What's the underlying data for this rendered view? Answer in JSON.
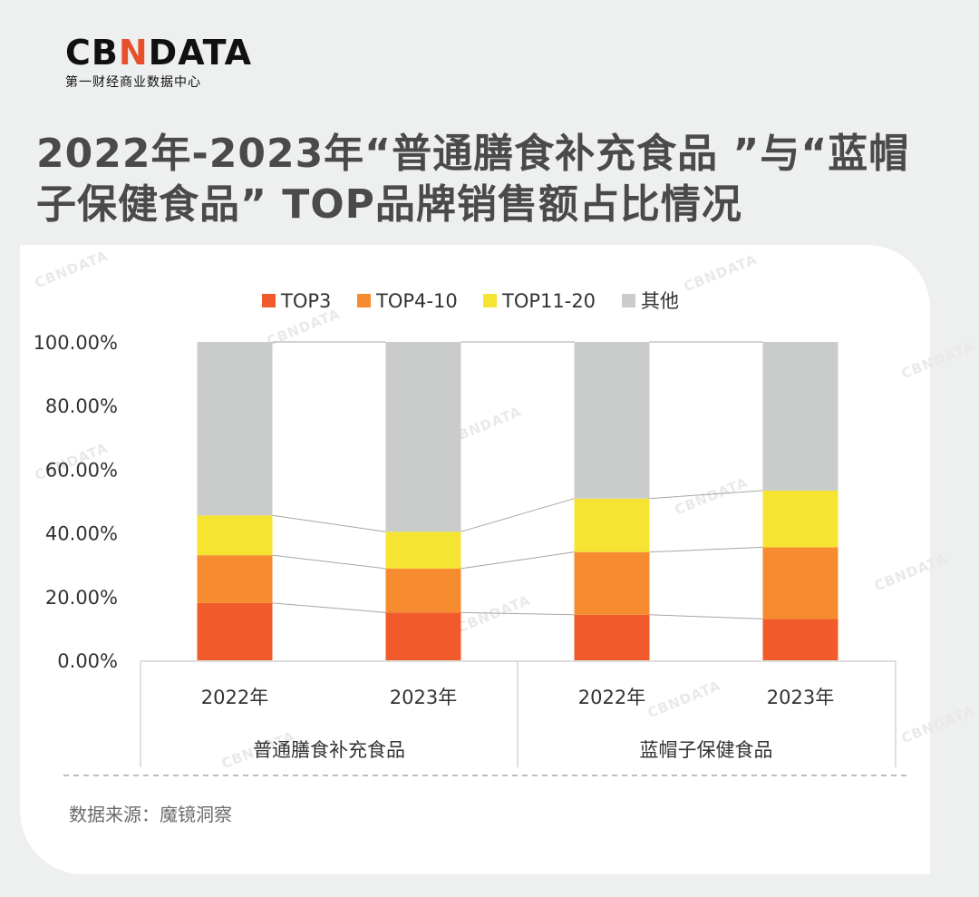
{
  "logo": {
    "text_left": "CB",
    "text_accent": "N",
    "text_right": "DATA",
    "subtitle": "第一财经商业数据中心"
  },
  "title": "2022年-2023年“普通膳食补充食品 ”与“蓝帽子保健食品” TOP品牌销售额占比情况",
  "source": "数据来源：魔镜洞察",
  "watermark": "CBNDATA",
  "colors": {
    "TOP3": "#f15a2b",
    "TOP4-10": "#f68b30",
    "TOP11-20": "#f6e432",
    "其他": "#cacbcb"
  },
  "chart_data": {
    "type": "bar",
    "stacked": true,
    "ylim": [
      0,
      100
    ],
    "yticks": [
      "0.00%",
      "20.00%",
      "40.00%",
      "60.00%",
      "80.00%",
      "100.00%"
    ],
    "groups": [
      {
        "label": "普通膳食补充食品",
        "categories": [
          "2022年",
          "2023年"
        ]
      },
      {
        "label": "蓝帽子保健食品",
        "categories": [
          "2022年",
          "2023年"
        ]
      }
    ],
    "categories": [
      "2022年",
      "2023年",
      "2022年",
      "2023年"
    ],
    "series": [
      {
        "name": "TOP3",
        "values": [
          18.0,
          15.0,
          14.3,
          13.0
        ]
      },
      {
        "name": "TOP4-10",
        "values": [
          15.0,
          13.8,
          19.7,
          22.5
        ]
      },
      {
        "name": "TOP11-20",
        "values": [
          12.5,
          11.6,
          16.8,
          17.8
        ]
      },
      {
        "name": "其他",
        "values": [
          54.5,
          59.6,
          49.2,
          46.7
        ]
      }
    ],
    "legend_position": "top",
    "series_lines": true
  }
}
